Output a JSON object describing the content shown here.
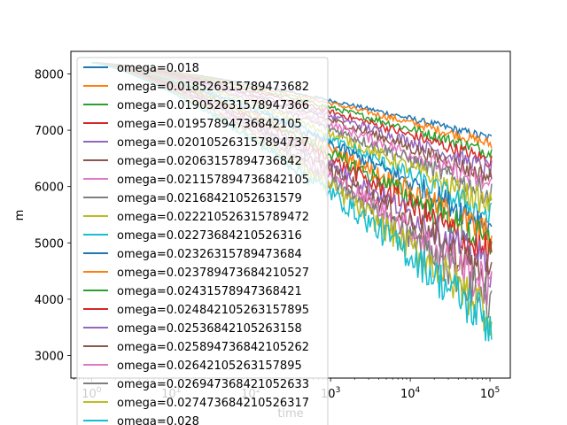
{
  "chart_data": {
    "type": "line",
    "xlabel": "time",
    "ylabel": "m",
    "xscale": "log",
    "xlim": [
      0.55,
      180000
    ],
    "ylim": [
      2600,
      8400
    ],
    "x_ticks": [
      {
        "value": 1,
        "base": "10",
        "exp": "0"
      },
      {
        "value": 10,
        "base": "10",
        "exp": "1"
      },
      {
        "value": 100,
        "base": "10",
        "exp": "2"
      },
      {
        "value": 1000,
        "base": "10",
        "exp": "3"
      },
      {
        "value": 10000,
        "base": "10",
        "exp": "4"
      },
      {
        "value": 100000,
        "base": "10",
        "exp": "5"
      }
    ],
    "y_ticks": [
      3000,
      4000,
      5000,
      6000,
      7000,
      8000
    ],
    "grid": false,
    "legend_position": "upper-left",
    "x_start": 1,
    "x_end": 105000,
    "y_start": 8200,
    "series": [
      {
        "name": "omega=0.018",
        "color": "#1f77b4",
        "end_value": 6850,
        "noise": 90
      },
      {
        "name": "omega=0.018526315789473682",
        "color": "#ff7f0e",
        "end_value": 6750,
        "noise": 110
      },
      {
        "name": "omega=0.019052631578947366",
        "color": "#2ca02c",
        "end_value": 6600,
        "noise": 130
      },
      {
        "name": "omega=0.01957894736842105",
        "color": "#d62728",
        "end_value": 6450,
        "noise": 150
      },
      {
        "name": "omega=0.020105263157894737",
        "color": "#9467bd",
        "end_value": 6300,
        "noise": 170
      },
      {
        "name": "omega=0.02063157894736842",
        "color": "#8c564b",
        "end_value": 6150,
        "noise": 190
      },
      {
        "name": "omega=0.021157894736842105",
        "color": "#e377c2",
        "end_value": 6000,
        "noise": 210
      },
      {
        "name": "omega=0.02168421052631579",
        "color": "#7f7f7f",
        "end_value": 5850,
        "noise": 230
      },
      {
        "name": "omega=0.022210526315789472",
        "color": "#bcbd22",
        "end_value": 5650,
        "noise": 250
      },
      {
        "name": "omega=0.02273684210526316",
        "color": "#17becf",
        "end_value": 5450,
        "noise": 280
      },
      {
        "name": "omega=0.02326315789473684",
        "color": "#1f77b4",
        "end_value": 5300,
        "noise": 300
      },
      {
        "name": "omega=0.023789473684210527",
        "color": "#ff7f0e",
        "end_value": 5100,
        "noise": 320
      },
      {
        "name": "omega=0.02431578947368421",
        "color": "#2ca02c",
        "end_value": 4950,
        "noise": 340
      },
      {
        "name": "omega=0.024842105263157895",
        "color": "#d62728",
        "end_value": 4750,
        "noise": 360
      },
      {
        "name": "omega=0.02536842105263158",
        "color": "#9467bd",
        "end_value": 4550,
        "noise": 380
      },
      {
        "name": "omega=0.025894736842105262",
        "color": "#8c564b",
        "end_value": 4350,
        "noise": 400
      },
      {
        "name": "omega=0.02642105263157895",
        "color": "#e377c2",
        "end_value": 4150,
        "noise": 420
      },
      {
        "name": "omega=0.026947368421052633",
        "color": "#7f7f7f",
        "end_value": 3950,
        "noise": 440
      },
      {
        "name": "omega=0.027473684210526317",
        "color": "#bcbd22",
        "end_value": 3750,
        "noise": 460
      },
      {
        "name": "omega=0.028",
        "color": "#17becf",
        "end_value": 3550,
        "noise": 480
      }
    ]
  }
}
